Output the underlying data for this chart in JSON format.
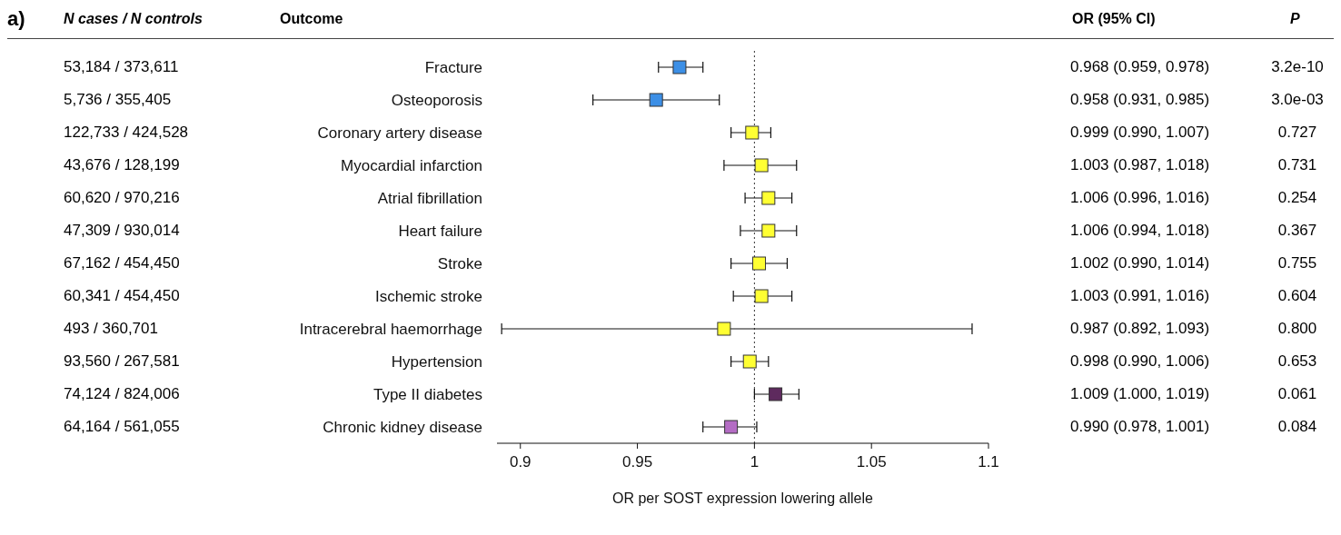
{
  "chart_data": {
    "type": "scatter",
    "orientation": "horizontal",
    "marker": "square",
    "xlabel": "OR per SOST expression lowering allele",
    "categories": [
      "Fracture",
      "Osteoporosis",
      "Coronary artery disease",
      "Myocardial infarction",
      "Atrial fibrillation",
      "Heart failure",
      "Stroke",
      "Ischemic stroke",
      "Intracerebral haemorrhage",
      "Hypertension",
      "Type II diabetes",
      "Chronic kidney disease"
    ],
    "values": [
      0.968,
      0.958,
      0.999,
      1.003,
      1.006,
      1.006,
      1.002,
      1.003,
      0.987,
      0.998,
      1.009,
      0.99
    ],
    "errors": [
      [
        0.959,
        0.978
      ],
      [
        0.931,
        0.985
      ],
      [
        0.99,
        1.007
      ],
      [
        0.987,
        1.018
      ],
      [
        0.996,
        1.016
      ],
      [
        0.994,
        1.018
      ],
      [
        0.99,
        1.014
      ],
      [
        0.991,
        1.016
      ],
      [
        0.892,
        1.093
      ],
      [
        0.99,
        1.006
      ],
      [
        1.0,
        1.019
      ],
      [
        0.978,
        1.001
      ]
    ],
    "colors": [
      "#3c8fe6",
      "#3c8fe6",
      "#ffff33",
      "#ffff33",
      "#ffff33",
      "#ffff33",
      "#ffff33",
      "#ffff33",
      "#ffff33",
      "#ffff33",
      "#5e2a5e",
      "#b46cc4"
    ],
    "value_labels": [
      "0.968 (0.959, 0.978)",
      "0.958 (0.931, 0.985)",
      "0.999 (0.990, 1.007)",
      "1.003 (0.987, 1.018)",
      "1.006 (0.996, 1.016)",
      "1.006 (0.994, 1.018)",
      "1.002 (0.990, 1.014)",
      "1.003 (0.991, 1.016)",
      "0.987 (0.892, 1.093)",
      "0.998 (0.990, 1.006)",
      "1.009 (1.000, 1.019)",
      "0.990 (0.978, 1.001)"
    ],
    "xlim": [
      0.89,
      1.1
    ],
    "xticks": [
      0.9,
      0.95,
      1,
      1.05,
      1.1
    ],
    "ref_lines": [
      {
        "axis": "x",
        "value": 1,
        "line_style": "dotted"
      }
    ],
    "annotations": [
      "a)",
      "Outcome",
      "N cases / N controls",
      "OR (95% CI)",
      "P",
      "53,184 / 373,611",
      "3.2e-10",
      "5,736 / 355,405",
      "3.0e-03",
      "122,733 / 424,528",
      "0.727",
      "43,676 / 128,199",
      "0.731",
      "60,620 / 970,216",
      "0.254",
      "47,309 / 930,014",
      "0.367",
      "67,162 / 454,450",
      "0.755",
      "60,341 / 454,450",
      "0.604",
      "493 / 360,701",
      "0.800",
      "93,560 / 267,581",
      "0.653",
      "74,124 / 824,006",
      "0.061",
      "64,164 / 561,055",
      "0.084"
    ]
  }
}
